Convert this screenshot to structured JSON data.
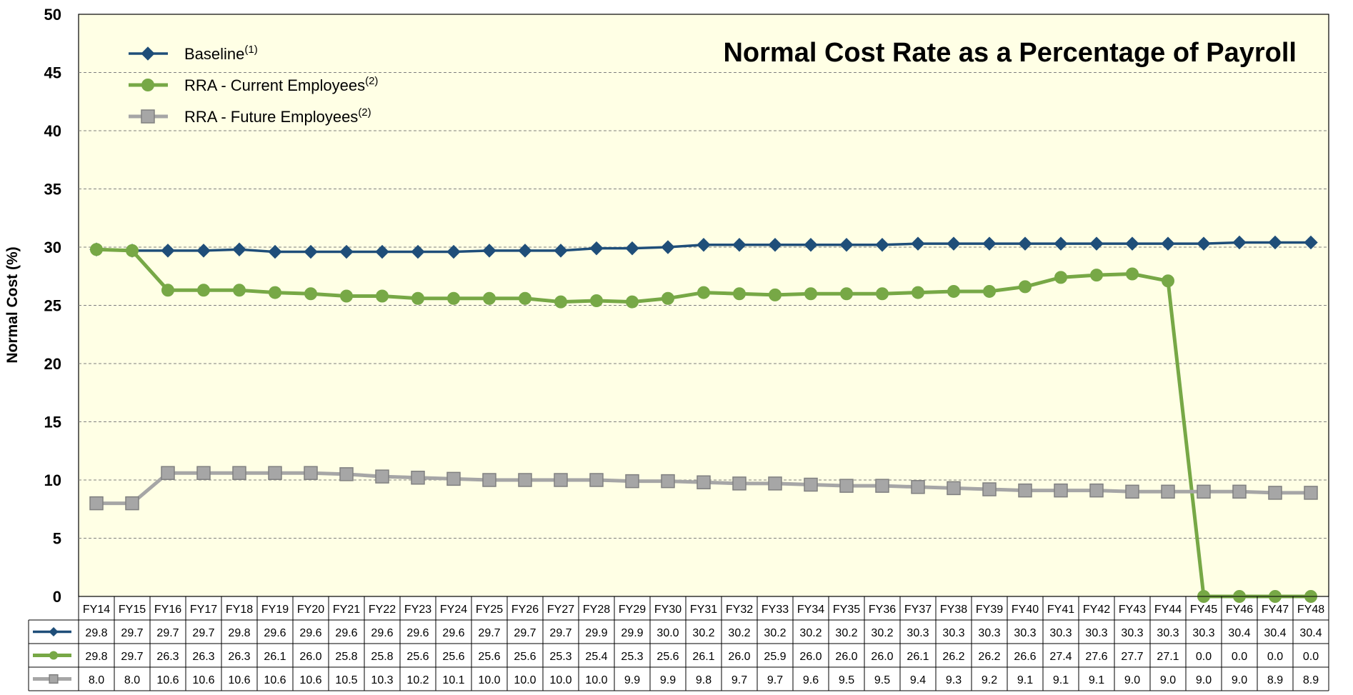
{
  "chart_data": {
    "type": "line",
    "title": "Normal Cost Rate as a Percentage of Payroll",
    "xlabel": "",
    "ylabel": "Normal Cost (%)",
    "ylim": [
      0,
      50
    ],
    "yticks": [
      0,
      5,
      10,
      15,
      20,
      25,
      30,
      35,
      40,
      45,
      50
    ],
    "grid": true,
    "legend_position": "top-left",
    "plot_background": "#FFFFE5",
    "categories": [
      "FY14",
      "FY15",
      "FY16",
      "FY17",
      "FY18",
      "FY19",
      "FY20",
      "FY21",
      "FY22",
      "FY23",
      "FY24",
      "FY25",
      "FY26",
      "FY27",
      "FY28",
      "FY29",
      "FY30",
      "FY31",
      "FY32",
      "FY33",
      "FY34",
      "FY35",
      "FY36",
      "FY37",
      "FY38",
      "FY39",
      "FY40",
      "FY41",
      "FY42",
      "FY43",
      "FY44",
      "FY45",
      "FY46",
      "FY47",
      "FY48"
    ],
    "series": [
      {
        "name": "Baseline",
        "superscript": "(1)",
        "color": "#1F4E79",
        "marker": "diamond",
        "values": [
          29.8,
          29.7,
          29.7,
          29.7,
          29.8,
          29.6,
          29.6,
          29.6,
          29.6,
          29.6,
          29.6,
          29.7,
          29.7,
          29.7,
          29.9,
          29.9,
          30.0,
          30.2,
          30.2,
          30.2,
          30.2,
          30.2,
          30.2,
          30.3,
          30.3,
          30.3,
          30.3,
          30.3,
          30.3,
          30.3,
          30.3,
          30.3,
          30.4,
          30.4,
          30.4
        ]
      },
      {
        "name": "RRA - Current Employees",
        "superscript": "(2)",
        "color": "#77A846",
        "marker": "circle",
        "values": [
          29.8,
          29.7,
          26.3,
          26.3,
          26.3,
          26.1,
          26.0,
          25.8,
          25.8,
          25.6,
          25.6,
          25.6,
          25.6,
          25.3,
          25.4,
          25.3,
          25.6,
          26.1,
          26.0,
          25.9,
          26.0,
          26.0,
          26.0,
          26.1,
          26.2,
          26.2,
          26.6,
          27.4,
          27.6,
          27.7,
          27.1,
          0.0,
          0.0,
          0.0,
          0.0
        ]
      },
      {
        "name": "RRA - Future Employees",
        "superscript": "(2)",
        "color": "#A6A6A6",
        "marker": "square",
        "values": [
          8.0,
          8.0,
          10.6,
          10.6,
          10.6,
          10.6,
          10.6,
          10.5,
          10.3,
          10.2,
          10.1,
          10.0,
          10.0,
          10.0,
          10.0,
          9.9,
          9.9,
          9.8,
          9.7,
          9.7,
          9.6,
          9.5,
          9.5,
          9.4,
          9.3,
          9.2,
          9.1,
          9.1,
          9.1,
          9.0,
          9.0,
          9.0,
          9.0,
          8.9,
          8.9
        ]
      }
    ]
  }
}
